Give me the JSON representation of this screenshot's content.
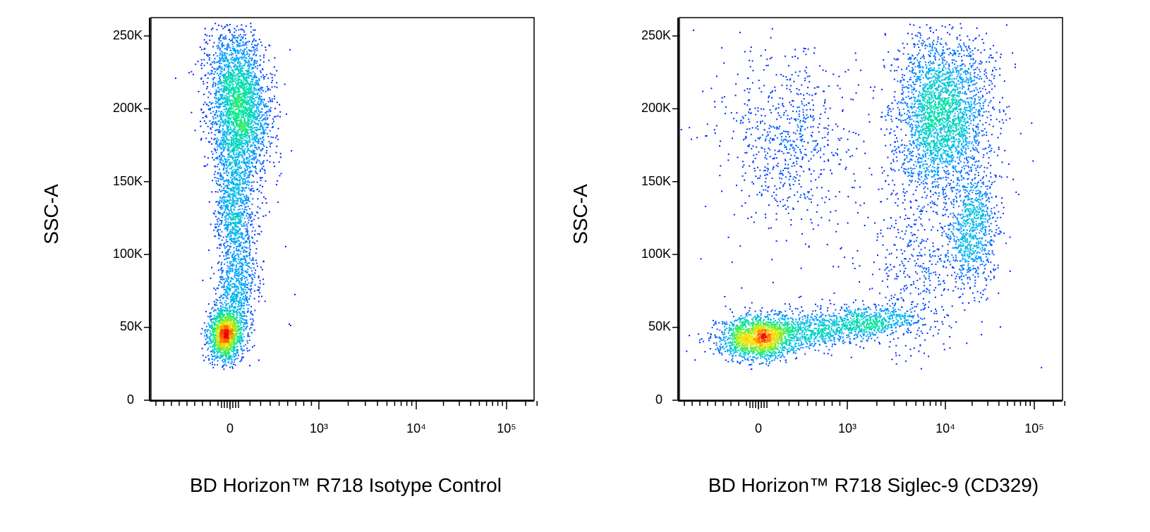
{
  "chart_data": [
    {
      "type": "scatter",
      "subtype": "flow-cytometry-density-dot-plot",
      "xlabel": "BD Horizon™ R718 Isotype Control",
      "ylabel": "SSC-A",
      "x_scale": "biexponential",
      "y_scale": "linear",
      "ylim": [
        0,
        262144
      ],
      "x_tick_labels": [
        "0",
        "10³",
        "10⁴",
        "10⁵"
      ],
      "y_tick_labels": [
        "0",
        "50K",
        "100K",
        "150K",
        "200K",
        "250K"
      ],
      "grid": false,
      "legend": "none",
      "color_scale": "density: blue → cyan → green → yellow → red",
      "populations": [
        {
          "x_center": "≈ 0",
          "y_center": 43000,
          "description": "low SSC cluster near 0"
        },
        {
          "x_center": "≈ 100",
          "y_center": 195000,
          "description": "high SSC cluster near 0"
        }
      ]
    },
    {
      "type": "scatter",
      "subtype": "flow-cytometry-density-dot-plot",
      "xlabel": "BD Horizon™ R718 Siglec-9 (CD329)",
      "ylabel": "SSC-A",
      "x_scale": "biexponential",
      "y_scale": "linear",
      "ylim": [
        0,
        262144
      ],
      "x_tick_labels": [
        "0",
        "10³",
        "10⁴",
        "10⁵"
      ],
      "y_tick_labels": [
        "0",
        "50K",
        "100K",
        "150K",
        "200K",
        "250K"
      ],
      "grid": false,
      "legend": "none",
      "color_scale": "density: blue → cyan → green → yellow → red",
      "populations": [
        {
          "x_center": "≈ 0",
          "y_center": 42000,
          "description": "low SSC cluster, Siglec-9 negative"
        },
        {
          "x_center": "≈ 13000",
          "y_center": 195000,
          "description": "high SSC cluster, Siglec-9 positive"
        },
        {
          "x_center": "≈ 25000",
          "y_center": 115000,
          "description": "intermediate SSC, Siglec-9 bright"
        },
        {
          "x_center": "≈ 300",
          "y_center": 195000,
          "description": "sparse high SSC events"
        }
      ]
    }
  ]
}
